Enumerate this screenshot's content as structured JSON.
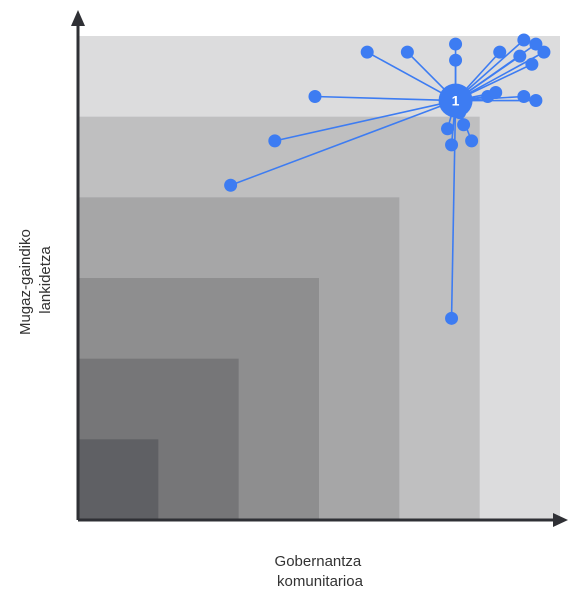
{
  "chart_data": {
    "type": "scatter",
    "title": "",
    "xlabel_lines": [
      "Gobernantza",
      "komunitarioa"
    ],
    "ylabel_lines": [
      "Mugaz-gaindiko",
      "lankidetza"
    ],
    "xlim": [
      0,
      6
    ],
    "ylim": [
      0,
      6
    ],
    "grid": false,
    "legend": "none",
    "colors": {
      "point": "#3d7cf2",
      "line": "#3d7cf2",
      "axis": "#2f3035",
      "bands": [
        "#dcdcdd",
        "#bfbfc0",
        "#a6a6a7",
        "#8e8e8f",
        "#767678",
        "#5f6064"
      ]
    },
    "background_bands": [
      6,
      5,
      4,
      3,
      2,
      1
    ],
    "center": {
      "label": "1",
      "x": 4.7,
      "y": 5.2
    },
    "points": [
      {
        "x": 1.9,
        "y": 4.15
      },
      {
        "x": 2.45,
        "y": 4.7
      },
      {
        "x": 2.95,
        "y": 5.25
      },
      {
        "x": 3.6,
        "y": 5.8
      },
      {
        "x": 4.1,
        "y": 5.8
      },
      {
        "x": 4.7,
        "y": 5.9
      },
      {
        "x": 4.7,
        "y": 5.7
      },
      {
        "x": 5.25,
        "y": 5.8
      },
      {
        "x": 5.55,
        "y": 5.95
      },
      {
        "x": 5.7,
        "y": 5.9
      },
      {
        "x": 5.8,
        "y": 5.8
      },
      {
        "x": 5.65,
        "y": 5.65
      },
      {
        "x": 5.5,
        "y": 5.75
      },
      {
        "x": 5.1,
        "y": 5.25
      },
      {
        "x": 5.2,
        "y": 5.3
      },
      {
        "x": 5.55,
        "y": 5.25
      },
      {
        "x": 5.7,
        "y": 5.2
      },
      {
        "x": 4.6,
        "y": 4.85
      },
      {
        "x": 4.8,
        "y": 4.9
      },
      {
        "x": 4.9,
        "y": 4.7
      },
      {
        "x": 4.65,
        "y": 4.65
      },
      {
        "x": 4.75,
        "y": 5.05
      },
      {
        "x": 4.65,
        "y": 2.5
      }
    ]
  }
}
